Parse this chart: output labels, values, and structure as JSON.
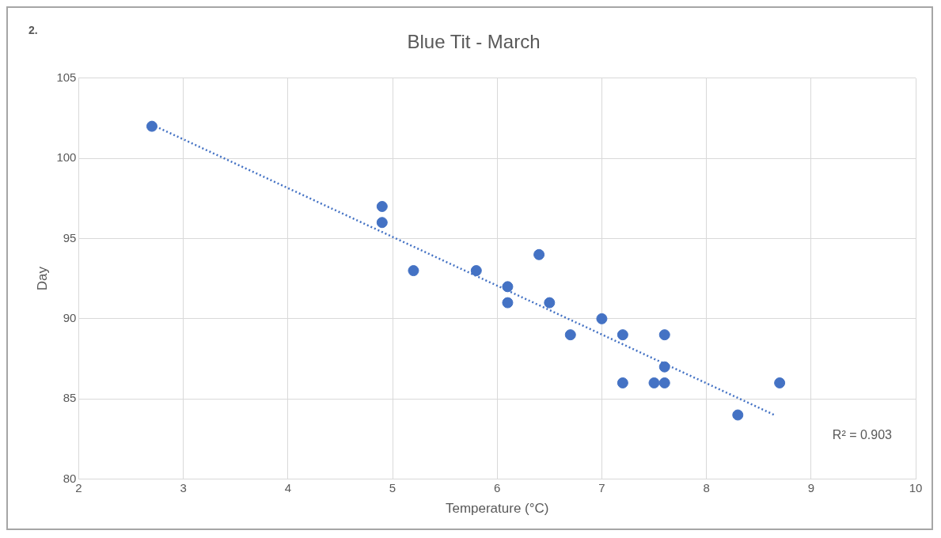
{
  "chart_data": {
    "type": "scatter",
    "title": "Blue Tit - March",
    "xlabel": "Temperature (°C)",
    "ylabel": "Day",
    "xlim": [
      2,
      10
    ],
    "xticks": [
      2,
      3,
      4,
      5,
      6,
      7,
      8,
      9,
      10
    ],
    "ylim": [
      80,
      105
    ],
    "yticks": [
      80,
      85,
      90,
      95,
      100,
      105
    ],
    "grid": true,
    "legend": false,
    "marker": "circle",
    "series": [
      {
        "type": "scatter",
        "color": "#4472c4",
        "x": [
          2.7,
          4.9,
          4.9,
          5.2,
          5.8,
          6.1,
          6.1,
          6.4,
          6.5,
          6.7,
          7.0,
          7.2,
          7.2,
          7.5,
          7.6,
          7.6,
          7.6,
          8.3,
          8.7
        ],
        "values": [
          102,
          97,
          96,
          93,
          93,
          92,
          91,
          94,
          91,
          89,
          90,
          89,
          86,
          86,
          89,
          87,
          86,
          84,
          86
        ]
      },
      {
        "type": "line",
        "color": "#4472c4",
        "line_style": "dotted",
        "marker": "none",
        "x": [
          2.7,
          8.65
        ],
        "values": [
          102.1,
          84
        ]
      }
    ],
    "annotations": [
      "2.",
      "R² = 0.903"
    ]
  }
}
